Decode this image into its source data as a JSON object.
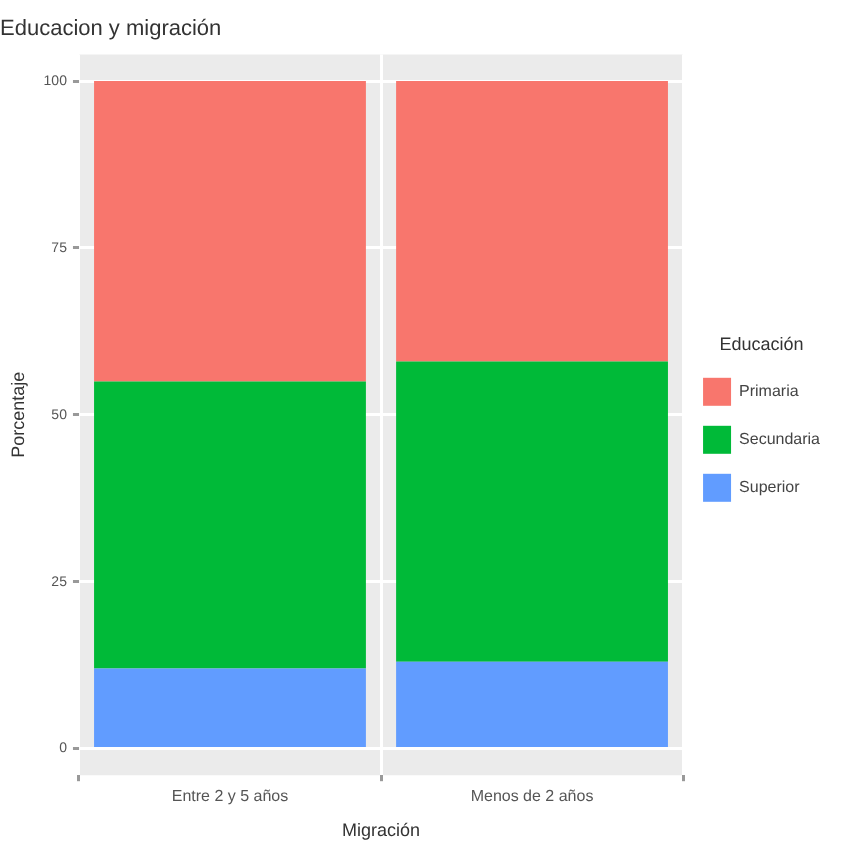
{
  "chart_data": {
    "type": "bar",
    "title": "Educacion y migración",
    "xlabel": "Migración",
    "ylabel": "Porcentaje",
    "legend_title": "Educación",
    "categories": [
      "Entre 2 y 5 años",
      "Menos de 2 años"
    ],
    "series": [
      {
        "name": "Superior",
        "color": "#619cff",
        "values": [
          12,
          13
        ]
      },
      {
        "name": "Secundaria",
        "color": "#00ba38",
        "values": [
          43,
          45
        ]
      },
      {
        "name": "Primaria",
        "color": "#f8766d",
        "values": [
          45,
          42
        ]
      }
    ],
    "stacked": true,
    "ylim": [
      -4,
      104
    ],
    "yticks": [
      0,
      25,
      50,
      75,
      100
    ],
    "grid": true,
    "legend": "right"
  }
}
